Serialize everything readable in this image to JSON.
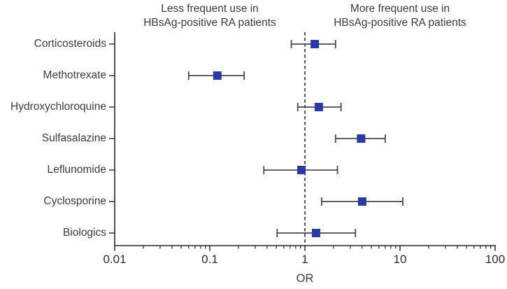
{
  "chart_data": {
    "type": "scatter",
    "subtype": "forest_plot",
    "title": "",
    "xlabel": "OR",
    "x_scale": "log10",
    "xlim": [
      0.01,
      100
    ],
    "x_ticks": [
      0.01,
      0.1,
      1,
      10,
      100
    ],
    "x_tick_labels": [
      "0.01",
      "0.1",
      "1",
      "10",
      "100"
    ],
    "reference_line_x": 1,
    "grid": false,
    "legend": "none",
    "annotations": {
      "left_header": "Less frequent use in\nHBsAg-positive RA patients",
      "right_header": "More frequent use in\nHBsAg-positive RA patients"
    },
    "categories": [
      "Corticosteroids",
      "Methotrexate",
      "Hydroxychloroquine",
      "Sulfasalazine",
      "Leflunomide",
      "Cyclosporine",
      "Biologics"
    ],
    "points": [
      {
        "label": "Corticosteroids",
        "or": 1.27,
        "ci_low": 0.72,
        "ci_high": 2.1
      },
      {
        "label": "Methotrexate",
        "or": 0.12,
        "ci_low": 0.06,
        "ci_high": 0.23
      },
      {
        "label": "Hydroxychloroquine",
        "or": 1.4,
        "ci_low": 0.84,
        "ci_high": 2.4
      },
      {
        "label": "Sulfasalazine",
        "or": 3.9,
        "ci_low": 2.1,
        "ci_high": 7.0
      },
      {
        "label": "Leflunomide",
        "or": 0.92,
        "ci_low": 0.37,
        "ci_high": 2.2
      },
      {
        "label": "Cyclosporine",
        "or": 4.0,
        "ci_low": 1.5,
        "ci_high": 10.7
      },
      {
        "label": "Biologics",
        "or": 1.31,
        "ci_low": 0.51,
        "ci_high": 3.4
      }
    ],
    "colors": {
      "marker": "#2b3a9c",
      "error_bar": "#4a4a4a",
      "axis": "#262626",
      "text": "#3b3b3b"
    }
  }
}
